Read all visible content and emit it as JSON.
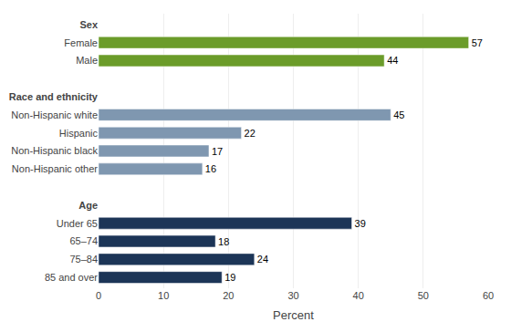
{
  "chart_data": {
    "type": "bar",
    "orientation": "horizontal",
    "categories": [
      "Sex",
      "Female",
      "Male",
      null,
      "Race and ethnicity",
      "Non-Hispanic white",
      "Hispanic",
      "Non-Hispanic black",
      "Non-Hispanic other",
      null,
      "Age",
      "Under 65",
      "65–74",
      "75–84",
      "85 and over"
    ],
    "values": [
      null,
      57,
      44,
      null,
      null,
      45,
      22,
      17,
      16,
      null,
      null,
      39,
      18,
      24,
      19
    ],
    "colors": [
      null,
      "#6b9c2a",
      "#6b9c2a",
      null,
      null,
      "#7f97b0",
      "#7f97b0",
      "#7f97b0",
      "#7f97b0",
      null,
      null,
      "#1c3557",
      "#1c3557",
      "#1c3557",
      "#1c3557"
    ],
    "xlabel": "Percent",
    "xlim": [
      0,
      60
    ],
    "xticks": [
      0,
      10,
      20,
      30,
      40,
      50,
      60
    ],
    "grid": true,
    "data_labels": true
  }
}
